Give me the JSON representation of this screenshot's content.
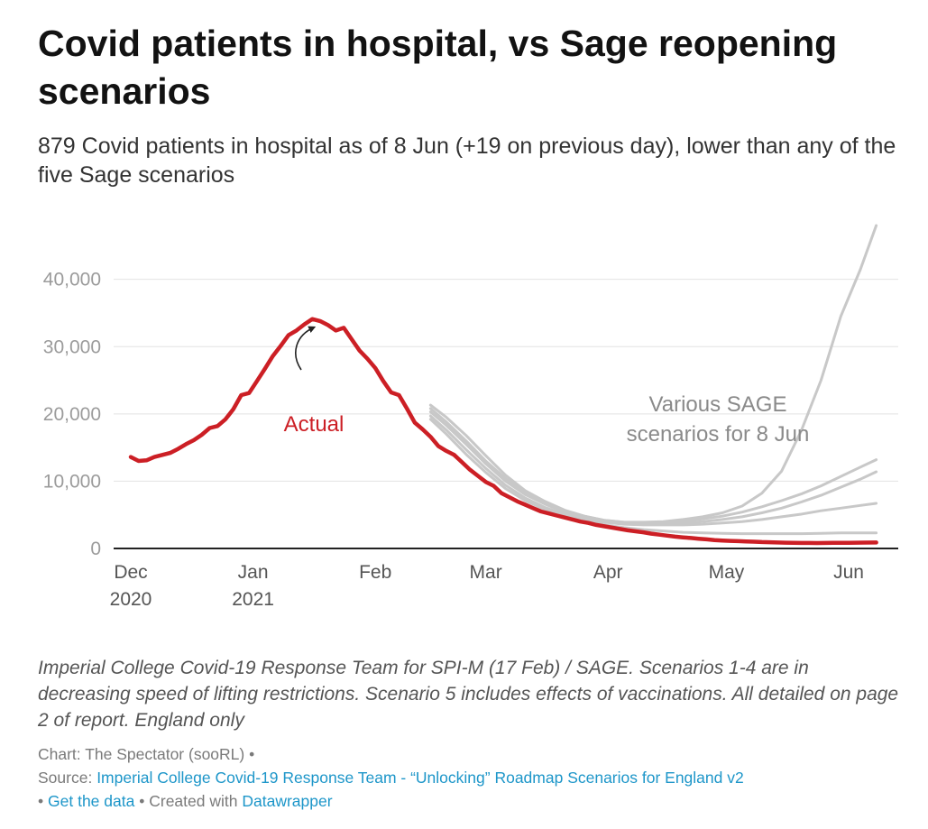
{
  "title": "Covid patients in hospital, vs Sage reopening scenarios",
  "subtitle": "879 Covid patients in hospital as of 8 Jun (+19 on previous day), lower than any of the five Sage scenarios",
  "notes": "Imperial College Covid-19 Response Team for SPI-M (17 Feb) / SAGE. Scenarios 1-4 are in decreasing speed of lifting restrictions. Scenario 5 includes effects of vaccinations. All detailed on page 2 of report. England only",
  "footer": {
    "chart_prefix": "Chart:",
    "chart_credit": "The Spectator (sooRL)",
    "source_prefix": "Source:",
    "source_link": "Imperial College Covid-19 Response Team - “Unlocking” Roadmap Scenarios for England v2",
    "get_data": "Get the data",
    "created_with": "Created with",
    "datawrapper": "Datawrapper",
    "bullet": "•"
  },
  "colors": {
    "actual": "#cc1f25",
    "scenario": "#c8c8c8",
    "grid": "#e2e2e2",
    "axis": "#222222",
    "scenario_label": "#8a8a8a",
    "link": "#1d96c9"
  },
  "chart_data": {
    "type": "line",
    "title": "Covid patients in hospital, vs Sage reopening scenarios",
    "xlabel": "",
    "ylabel": "",
    "ylim": [
      0,
      48000
    ],
    "yticks": [
      {
        "value": 0,
        "label": "0"
      },
      {
        "value": 10000,
        "label": "10,000"
      },
      {
        "value": 20000,
        "label": "20,000"
      },
      {
        "value": 30000,
        "label": "30,000"
      },
      {
        "value": 40000,
        "label": "40,000"
      }
    ],
    "xlim_days": [
      0,
      190
    ],
    "xticks": [
      {
        "day": 0,
        "line1": "Dec",
        "line2": "2020"
      },
      {
        "day": 31,
        "line1": "Jan",
        "line2": "2021"
      },
      {
        "day": 62,
        "line1": "Feb",
        "line2": ""
      },
      {
        "day": 90,
        "line1": "Mar",
        "line2": ""
      },
      {
        "day": 121,
        "line1": "Apr",
        "line2": ""
      },
      {
        "day": 151,
        "line1": "May",
        "line2": ""
      },
      {
        "day": 182,
        "line1": "Jun",
        "line2": ""
      }
    ],
    "x_unit": "days since 1 Dec 2020",
    "series": [
      {
        "name": "Actual",
        "color": "#cc1f25",
        "points": [
          [
            0,
            13600
          ],
          [
            2,
            13000
          ],
          [
            4,
            13100
          ],
          [
            6,
            13600
          ],
          [
            8,
            13900
          ],
          [
            10,
            14200
          ],
          [
            12,
            14800
          ],
          [
            14,
            15500
          ],
          [
            16,
            16100
          ],
          [
            18,
            16900
          ],
          [
            20,
            17900
          ],
          [
            22,
            18200
          ],
          [
            24,
            19200
          ],
          [
            26,
            20700
          ],
          [
            28,
            22800
          ],
          [
            30,
            23100
          ],
          [
            32,
            24900
          ],
          [
            34,
            26700
          ],
          [
            36,
            28600
          ],
          [
            38,
            30100
          ],
          [
            40,
            31700
          ],
          [
            42,
            32400
          ],
          [
            44,
            33300
          ],
          [
            46,
            34100
          ],
          [
            48,
            33800
          ],
          [
            50,
            33200
          ],
          [
            52,
            32400
          ],
          [
            54,
            32800
          ],
          [
            56,
            31100
          ],
          [
            58,
            29400
          ],
          [
            60,
            28200
          ],
          [
            62,
            26800
          ],
          [
            64,
            24900
          ],
          [
            66,
            23200
          ],
          [
            68,
            22800
          ],
          [
            70,
            20800
          ],
          [
            72,
            18700
          ],
          [
            74,
            17700
          ],
          [
            76,
            16600
          ],
          [
            78,
            15200
          ],
          [
            80,
            14500
          ],
          [
            82,
            13900
          ],
          [
            84,
            12800
          ],
          [
            86,
            11700
          ],
          [
            88,
            10800
          ],
          [
            90,
            9900
          ],
          [
            92,
            9300
          ],
          [
            94,
            8200
          ],
          [
            96,
            7600
          ],
          [
            98,
            7000
          ],
          [
            100,
            6500
          ],
          [
            102,
            6000
          ],
          [
            104,
            5500
          ],
          [
            106,
            5200
          ],
          [
            108,
            4900
          ],
          [
            110,
            4600
          ],
          [
            112,
            4300
          ],
          [
            114,
            4000
          ],
          [
            116,
            3800
          ],
          [
            118,
            3500
          ],
          [
            120,
            3300
          ],
          [
            122,
            3100
          ],
          [
            124,
            2900
          ],
          [
            126,
            2700
          ],
          [
            128,
            2550
          ],
          [
            130,
            2400
          ],
          [
            132,
            2200
          ],
          [
            134,
            2050
          ],
          [
            136,
            1900
          ],
          [
            138,
            1750
          ],
          [
            140,
            1650
          ],
          [
            142,
            1550
          ],
          [
            144,
            1450
          ],
          [
            146,
            1350
          ],
          [
            148,
            1250
          ],
          [
            150,
            1180
          ],
          [
            152,
            1120
          ],
          [
            154,
            1080
          ],
          [
            156,
            1040
          ],
          [
            158,
            1000
          ],
          [
            160,
            950
          ],
          [
            162,
            920
          ],
          [
            164,
            890
          ],
          [
            166,
            860
          ],
          [
            168,
            840
          ],
          [
            170,
            820
          ],
          [
            172,
            820
          ],
          [
            174,
            810
          ],
          [
            176,
            820
          ],
          [
            178,
            830
          ],
          [
            180,
            840
          ],
          [
            182,
            850
          ],
          [
            184,
            860
          ],
          [
            186,
            870
          ],
          [
            189,
            879
          ]
        ]
      },
      {
        "name": "Scenario 1",
        "color": "#c8c8c8",
        "points": [
          [
            76,
            21300
          ],
          [
            80,
            19500
          ],
          [
            85,
            16800
          ],
          [
            90,
            13800
          ],
          [
            95,
            10900
          ],
          [
            100,
            8600
          ],
          [
            105,
            7000
          ],
          [
            110,
            5700
          ],
          [
            115,
            4800
          ],
          [
            120,
            4200
          ],
          [
            125,
            3900
          ],
          [
            130,
            3900
          ],
          [
            135,
            4000
          ],
          [
            140,
            4300
          ],
          [
            145,
            4700
          ],
          [
            150,
            5300
          ],
          [
            155,
            6300
          ],
          [
            160,
            8200
          ],
          [
            165,
            11500
          ],
          [
            170,
            17500
          ],
          [
            175,
            25000
          ],
          [
            180,
            34500
          ],
          [
            185,
            41500
          ],
          [
            189,
            48000
          ]
        ]
      },
      {
        "name": "Scenario 2",
        "color": "#c8c8c8",
        "points": [
          [
            76,
            20800
          ],
          [
            80,
            18800
          ],
          [
            85,
            16000
          ],
          [
            90,
            13000
          ],
          [
            95,
            10400
          ],
          [
            100,
            8300
          ],
          [
            105,
            6800
          ],
          [
            110,
            5600
          ],
          [
            115,
            4800
          ],
          [
            120,
            4200
          ],
          [
            125,
            3900
          ],
          [
            130,
            3800
          ],
          [
            135,
            3900
          ],
          [
            140,
            4100
          ],
          [
            145,
            4400
          ],
          [
            150,
            4800
          ],
          [
            155,
            5400
          ],
          [
            160,
            6200
          ],
          [
            165,
            7100
          ],
          [
            170,
            8100
          ],
          [
            175,
            9300
          ],
          [
            180,
            10700
          ],
          [
            185,
            12100
          ],
          [
            189,
            13200
          ]
        ]
      },
      {
        "name": "Scenario 3",
        "color": "#c8c8c8",
        "points": [
          [
            76,
            20300
          ],
          [
            80,
            18300
          ],
          [
            85,
            15500
          ],
          [
            90,
            12600
          ],
          [
            95,
            10000
          ],
          [
            100,
            8000
          ],
          [
            105,
            6600
          ],
          [
            110,
            5400
          ],
          [
            115,
            4600
          ],
          [
            120,
            4100
          ],
          [
            125,
            3800
          ],
          [
            130,
            3700
          ],
          [
            135,
            3700
          ],
          [
            140,
            3800
          ],
          [
            145,
            4000
          ],
          [
            150,
            4300
          ],
          [
            155,
            4700
          ],
          [
            160,
            5300
          ],
          [
            165,
            6000
          ],
          [
            170,
            6900
          ],
          [
            175,
            7900
          ],
          [
            180,
            9100
          ],
          [
            185,
            10300
          ],
          [
            189,
            11400
          ]
        ]
      },
      {
        "name": "Scenario 4",
        "color": "#c8c8c8",
        "points": [
          [
            76,
            19700
          ],
          [
            80,
            17600
          ],
          [
            85,
            14700
          ],
          [
            90,
            11900
          ],
          [
            95,
            9400
          ],
          [
            100,
            7500
          ],
          [
            105,
            6100
          ],
          [
            110,
            5100
          ],
          [
            115,
            4400
          ],
          [
            120,
            3900
          ],
          [
            125,
            3600
          ],
          [
            130,
            3500
          ],
          [
            135,
            3500
          ],
          [
            140,
            3500
          ],
          [
            145,
            3600
          ],
          [
            150,
            3800
          ],
          [
            155,
            4000
          ],
          [
            160,
            4300
          ],
          [
            165,
            4700
          ],
          [
            170,
            5100
          ],
          [
            175,
            5600
          ],
          [
            180,
            6000
          ],
          [
            185,
            6400
          ],
          [
            189,
            6700
          ]
        ]
      },
      {
        "name": "Scenario 5",
        "color": "#c8c8c8",
        "points": [
          [
            76,
            19200
          ],
          [
            80,
            17000
          ],
          [
            85,
            14000
          ],
          [
            90,
            11300
          ],
          [
            95,
            8900
          ],
          [
            100,
            7100
          ],
          [
            105,
            5800
          ],
          [
            110,
            4800
          ],
          [
            115,
            4100
          ],
          [
            120,
            3500
          ],
          [
            125,
            3100
          ],
          [
            130,
            2800
          ],
          [
            135,
            2600
          ],
          [
            140,
            2400
          ],
          [
            145,
            2300
          ],
          [
            150,
            2250
          ],
          [
            155,
            2200
          ],
          [
            160,
            2200
          ],
          [
            165,
            2200
          ],
          [
            170,
            2200
          ],
          [
            175,
            2250
          ],
          [
            180,
            2300
          ],
          [
            185,
            2300
          ],
          [
            189,
            2300
          ]
        ]
      }
    ],
    "annotations": {
      "actual_label": "Actual",
      "scenario_label_line1": "Various SAGE",
      "scenario_label_line2": "scenarios for 8 Jun"
    }
  }
}
